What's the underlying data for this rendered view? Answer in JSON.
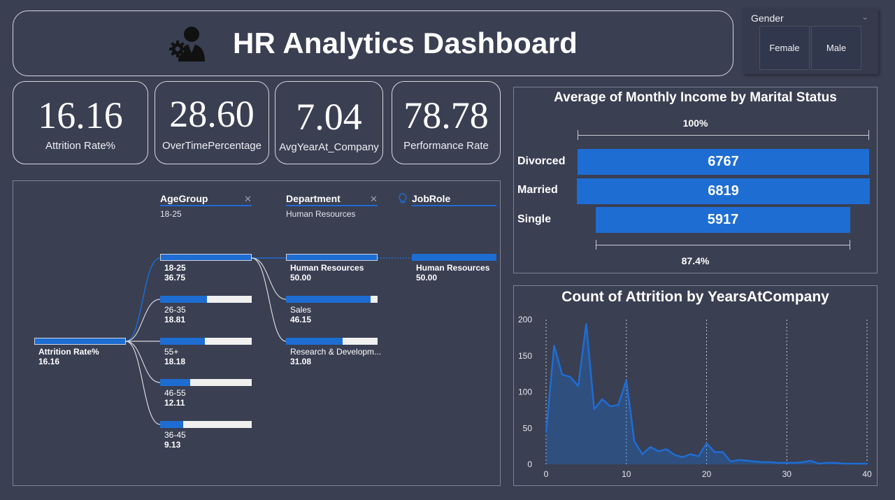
{
  "header": {
    "title": "HR Analytics Dashboard",
    "icon": "user-gear-icon"
  },
  "gender_slicer": {
    "label": "Gender",
    "options": [
      "Female",
      "Male"
    ]
  },
  "kpis": [
    {
      "value": "16.16",
      "label": "Attrition Rate%"
    },
    {
      "value": "28.60",
      "label": "OverTimePercentage"
    },
    {
      "value": "7.04",
      "label": "AvgYearAt_Company"
    },
    {
      "value": "78.78",
      "label": "Performance Rate"
    }
  ],
  "decomposition": {
    "root": {
      "label": "Attrition Rate%",
      "value": "16.16"
    },
    "levels": [
      {
        "name": "AgeGroup",
        "selected": "18-25"
      },
      {
        "name": "Department",
        "selected": "Human Resources"
      },
      {
        "name": "JobRole",
        "selected": ""
      }
    ],
    "age_groups": [
      {
        "label": "18-25",
        "value": "36.75",
        "fraction": 1.0
      },
      {
        "label": "26-35",
        "value": "18.81",
        "fraction": 0.51
      },
      {
        "label": "55+",
        "value": "18.18",
        "fraction": 0.49
      },
      {
        "label": "46-55",
        "value": "12.11",
        "fraction": 0.33
      },
      {
        "label": "36-45",
        "value": "9.13",
        "fraction": 0.25
      }
    ],
    "departments": [
      {
        "label": "Human Resources",
        "value": "50.00",
        "fraction": 1.0
      },
      {
        "label": "Sales",
        "value": "46.15",
        "fraction": 0.92
      },
      {
        "label": "Research & Developm...",
        "value": "31.08",
        "fraction": 0.62
      }
    ],
    "job_roles": [
      {
        "label": "Human Resources",
        "value": "50.00",
        "fraction": 1.0
      }
    ],
    "colors": {
      "accent": "#1e6dd3",
      "track": "#f0f0f0"
    }
  },
  "marital_chart": {
    "title": "Average of Monthly Income by Marital Status",
    "top_label": "100%",
    "bottom_label": "87.4%",
    "bars": [
      {
        "category": "Divorced",
        "value": "6767"
      },
      {
        "category": "Married",
        "value": "6819"
      },
      {
        "category": "Single",
        "value": "5917"
      }
    ]
  },
  "chart_data": {
    "type": "area",
    "title": "Count of Attrition by YearsAtCompany",
    "xlabel": "",
    "ylabel": "",
    "xlim": [
      0,
      40
    ],
    "ylim": [
      0,
      200
    ],
    "x_ticks": [
      0,
      10,
      20,
      30,
      40
    ],
    "y_ticks": [
      0,
      50,
      100,
      150,
      200
    ],
    "grid": "vertical dotted",
    "color": "#1e6dd3",
    "x": [
      0,
      1,
      2,
      3,
      4,
      5,
      6,
      7,
      8,
      9,
      10,
      11,
      12,
      13,
      14,
      15,
      16,
      17,
      18,
      19,
      20,
      21,
      22,
      23,
      24,
      25,
      26,
      27,
      28,
      29,
      30,
      31,
      32,
      33,
      34,
      35,
      36,
      37,
      38,
      39,
      40
    ],
    "y": [
      44,
      164,
      124,
      121,
      108,
      194,
      76,
      90,
      80,
      82,
      116,
      32,
      14,
      24,
      18,
      21,
      13,
      10,
      14,
      11,
      29,
      17,
      17,
      4,
      6,
      5,
      4,
      3,
      3,
      2,
      2,
      2,
      3,
      5,
      1,
      2,
      2,
      1,
      1,
      1,
      1
    ]
  }
}
